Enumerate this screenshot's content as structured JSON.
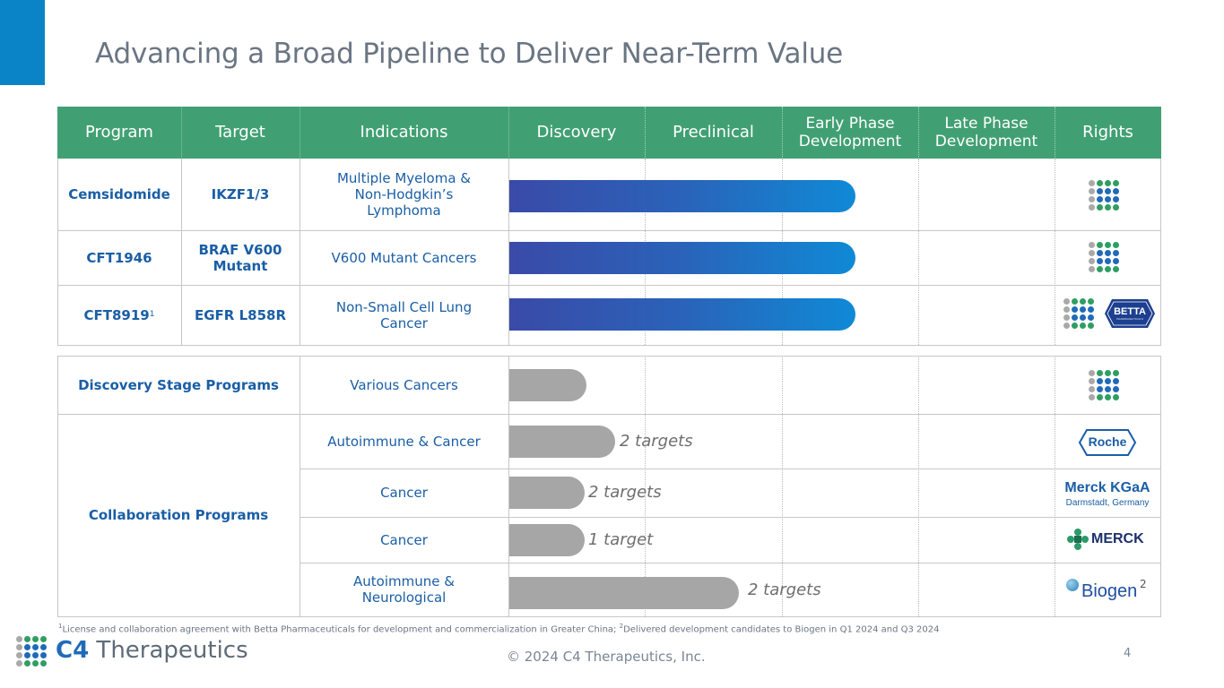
{
  "title": "Advancing a Broad Pipeline to Deliver Near-Term Value",
  "headers": {
    "program": "Program",
    "target": "Target",
    "indications": "Indications",
    "discovery": "Discovery",
    "preclinical": "Preclinical",
    "early_phase": "Early Phase Development",
    "late_phase": "Late Phase Development",
    "rights": "Rights"
  },
  "clinical_programs": [
    {
      "program": "Cemsidomide",
      "target": "IKZF1/3",
      "indication": "Multiple Myeloma & Non-Hodgkin’s Lymphoma",
      "stage": "Early Phase Development"
    },
    {
      "program": "CFT1946",
      "target": "BRAF V600 Mutant",
      "indication": "V600 Mutant Cancers",
      "stage": "Early Phase Development"
    },
    {
      "program": "CFT8919",
      "program_sup": "1",
      "target": "EGFR L858R",
      "indication": "Non-Small Cell Lung Cancer",
      "stage": "Early Phase Development"
    }
  ],
  "discovery_row": {
    "program": "Discovery Stage Programs",
    "indication": "Various Cancers"
  },
  "collaboration": {
    "program": "Collaboration Programs",
    "rows": [
      {
        "indication": "Autoimmune & Cancer",
        "targets": "2 targets",
        "partner": "Roche"
      },
      {
        "indication": "Cancer",
        "targets": "2 targets",
        "partner": "Merck KGaA"
      },
      {
        "indication": "Cancer",
        "targets": "1 target",
        "partner": "MERCK"
      },
      {
        "indication": "Autoimmune & Neurological",
        "targets": "2 targets",
        "partner": "Biogen"
      }
    ]
  },
  "logos": {
    "betta": "BETTA",
    "betta_sub": "PHARMACEUTICALS",
    "roche": "Roche",
    "merck_kgaa": "Merck KGaA",
    "merck_kgaa_sub": "Darmstadt, Germany",
    "merck": "MERCK",
    "biogen": "Biogen",
    "biogen_sup": "2"
  },
  "footnote": {
    "sup1": "1",
    "text1": "License and collaboration agreement with Betta Pharmaceuticals for development and commercialization in Greater China; ",
    "sup2": "2",
    "text2": "Delivered development candidates to Biogen in Q1 2024 and Q3 2024"
  },
  "copyright": "© 2024 C4 Therapeutics, Inc.",
  "page_number": "4",
  "company": {
    "c4": "C4",
    "name": " Therapeutics"
  },
  "colors": {
    "header_green": "#41a073",
    "accent_blue": "#0a84c6",
    "program_blue": "#1a5ea6",
    "bar_grey": "#a6a6a6"
  }
}
